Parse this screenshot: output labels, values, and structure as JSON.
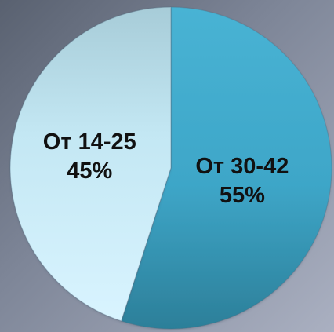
{
  "chart_data": {
    "type": "pie",
    "title": "",
    "slices": [
      {
        "label": "От 30-42",
        "value": 55,
        "display_value": "55%",
        "color": "#3ea6c8"
      },
      {
        "label": "От 14-25",
        "value": 45,
        "display_value": "45%",
        "color": "#bde6f4"
      }
    ],
    "start_angle": "top",
    "direction": "clockwise"
  }
}
